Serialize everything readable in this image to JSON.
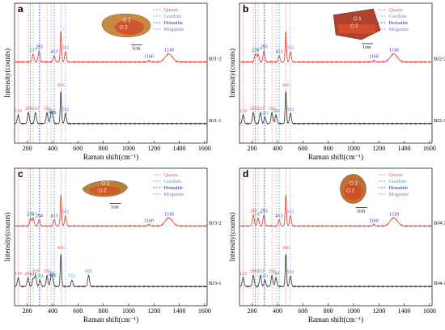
{
  "colors": {
    "quartz": "#e06060",
    "goethite": "#40b0a0",
    "hematite": "#3030b0",
    "moganite": "#9070d0",
    "upper_trace": "#e04030",
    "lower_trace": "#303030"
  },
  "legend_entries": [
    "Quartz",
    "Goethite",
    "Hematite",
    "Moganite"
  ],
  "scale_bar_label": "1cm",
  "chart_data": [
    {
      "type": "line",
      "panel": "a",
      "xlabel": "Raman shift(cm⁻¹)",
      "ylabel": "Intensity(counts)",
      "xlim": [
        100,
        1620
      ],
      "x_ticks": [
        "200",
        "400",
        "600",
        "800",
        "1000",
        "1200",
        "1400",
        "1600"
      ],
      "reference_lines": {
        "quartz": [
          129,
          209,
          356,
          466
        ],
        "goethite": [
          247,
          301,
          388
        ],
        "hematite": [
          226,
          293,
          413
        ],
        "moganite": [
          502
        ]
      },
      "spots": [
        "1",
        "2"
      ],
      "series": [
        {
          "name": "BJ1-2",
          "peaks": [
            {
              "x": 247,
              "label": "247",
              "mineral": "goethite"
            },
            {
              "x": 293,
              "label": "293",
              "mineral": "hematite"
            },
            {
              "x": 413,
              "label": "413",
              "mineral": "hematite"
            },
            {
              "x": 502,
              "label": "502",
              "mineral": "moganite"
            },
            {
              "x": 1160,
              "label": "1160",
              "mineral": "hematite"
            },
            {
              "x": 1318,
              "label": "1318",
              "mineral": "hematite"
            }
          ]
        },
        {
          "name": "BJ1-1",
          "peaks": [
            {
              "x": 129,
              "label": "129",
              "mineral": "quartz"
            },
            {
              "x": 209,
              "label": "209",
              "mineral": "quartz"
            },
            {
              "x": 265,
              "label": "265",
              "mineral": "quartz"
            },
            {
              "x": 356,
              "label": "356",
              "mineral": "quartz"
            },
            {
              "x": 388,
              "label": "388",
              "mineral": "goethite"
            },
            {
              "x": 400,
              "label": "400",
              "mineral": "hematite"
            },
            {
              "x": 466,
              "label": "466",
              "mineral": "quartz"
            },
            {
              "x": 502,
              "label": "502",
              "mineral": "moganite"
            }
          ]
        }
      ]
    },
    {
      "type": "line",
      "panel": "b",
      "xlabel": "Raman shift(cm⁻¹)",
      "ylabel": "Intensity(counts)",
      "xlim": [
        100,
        1620
      ],
      "x_ticks": [
        "200",
        "400",
        "600",
        "800",
        "1000",
        "1200",
        "1400",
        "1600"
      ],
      "reference_lines": {
        "quartz": [
          129,
          209,
          356,
          466
        ],
        "goethite": [
          247,
          301,
          388
        ],
        "hematite": [
          226,
          293,
          413
        ],
        "moganite": [
          502
        ]
      },
      "spots": [
        "1",
        "2"
      ],
      "series": [
        {
          "name": "BJ2-2",
          "peaks": [
            {
              "x": 226,
              "label": "226",
              "mineral": "hematite"
            },
            {
              "x": 247,
              "label": "247",
              "mineral": "goethite"
            },
            {
              "x": 293,
              "label": "293",
              "mineral": "hematite"
            },
            {
              "x": 413,
              "label": "413",
              "mineral": "hematite"
            },
            {
              "x": 502,
              "label": "502",
              "mineral": "moganite"
            },
            {
              "x": 1160,
              "label": "1160",
              "mineral": "hematite"
            },
            {
              "x": 1318,
              "label": "1318",
              "mineral": "hematite"
            }
          ]
        },
        {
          "name": "BJ2-1",
          "peaks": [
            {
              "x": 129,
              "label": "129",
              "mineral": "quartz"
            },
            {
              "x": 209,
              "label": "209",
              "mineral": "quartz"
            },
            {
              "x": 265,
              "label": "265",
              "mineral": "quartz"
            },
            {
              "x": 301,
              "label": "301",
              "mineral": "goethite"
            },
            {
              "x": 356,
              "label": "356",
              "mineral": "quartz"
            },
            {
              "x": 388,
              "label": "388",
              "mineral": "goethite"
            },
            {
              "x": 466,
              "label": "466",
              "mineral": "quartz"
            },
            {
              "x": 502,
              "label": "502",
              "mineral": "moganite"
            }
          ]
        }
      ]
    },
    {
      "type": "line",
      "panel": "c",
      "xlabel": "Raman shift(cm⁻¹)",
      "ylabel": "Intensity(counts)",
      "xlim": [
        100,
        1620
      ],
      "x_ticks": [
        "200",
        "400",
        "600",
        "800",
        "1000",
        "1200",
        "1400",
        "1600"
      ],
      "reference_lines": {
        "quartz": [
          129,
          209,
          356,
          466
        ],
        "goethite": [
          247,
          301,
          388
        ],
        "hematite": [
          226,
          293,
          413
        ],
        "moganite": [
          502
        ]
      },
      "spots": [
        "1",
        "2"
      ],
      "series": [
        {
          "name": "BJ3-2",
          "peaks": [
            {
              "x": 226,
              "label": "226",
              "mineral": "hematite"
            },
            {
              "x": 247,
              "label": "247",
              "mineral": "goethite"
            },
            {
              "x": 294,
              "label": "294",
              "mineral": "hematite"
            },
            {
              "x": 413,
              "label": "413",
              "mineral": "hematite"
            },
            {
              "x": 502,
              "label": "502",
              "mineral": "moganite"
            },
            {
              "x": 1160,
              "label": "1160",
              "mineral": "hematite"
            },
            {
              "x": 1318,
              "label": "1318",
              "mineral": "hematite"
            }
          ]
        },
        {
          "name": "BJ3-1",
          "peaks": [
            {
              "x": 129,
              "label": "129",
              "mineral": "quartz"
            },
            {
              "x": 206,
              "label": "206",
              "mineral": "quartz"
            },
            {
              "x": 247,
              "label": "247",
              "mineral": "goethite"
            },
            {
              "x": 265,
              "label": "265",
              "mineral": "quartz"
            },
            {
              "x": 301,
              "label": "301",
              "mineral": "goethite"
            },
            {
              "x": 356,
              "label": "356",
              "mineral": "quartz"
            },
            {
              "x": 388,
              "label": "388",
              "mineral": "goethite"
            },
            {
              "x": 400,
              "label": "400",
              "mineral": "hematite"
            },
            {
              "x": 466,
              "label": "466",
              "mineral": "quartz"
            },
            {
              "x": 553,
              "label": "553",
              "mineral": "goethite"
            },
            {
              "x": 685,
              "label": "685",
              "mineral": "goethite"
            }
          ]
        }
      ]
    },
    {
      "type": "line",
      "panel": "d",
      "xlabel": "Raman shift(cm⁻¹)",
      "ylabel": "Intensity(counts)",
      "xlim": [
        100,
        1620
      ],
      "x_ticks": [
        "200",
        "400",
        "600",
        "800",
        "1000",
        "1200",
        "1400",
        "1600"
      ],
      "reference_lines": {
        "quartz": [
          129,
          209,
          356,
          466
        ],
        "goethite": [
          247,
          301,
          388
        ],
        "hematite": [
          226,
          293,
          413
        ],
        "moganite": [
          502
        ]
      },
      "spots": [
        "1",
        "2"
      ],
      "series": [
        {
          "name": "BJ4-2",
          "peaks": [
            {
              "x": 209,
              "label": "209",
              "mineral": "quartz"
            },
            {
              "x": 247,
              "label": "247",
              "mineral": "goethite"
            },
            {
              "x": 293,
              "label": "293",
              "mineral": "hematite"
            },
            {
              "x": 413,
              "label": "413",
              "mineral": "hematite"
            },
            {
              "x": 502,
              "label": "502",
              "mineral": "moganite"
            },
            {
              "x": 1160,
              "label": "1160",
              "mineral": "hematite"
            },
            {
              "x": 1318,
              "label": "1318",
              "mineral": "hematite"
            }
          ]
        },
        {
          "name": "BJ4-1",
          "peaks": [
            {
              "x": 129,
              "label": "129",
              "mineral": "quartz"
            },
            {
              "x": 209,
              "label": "209",
              "mineral": "quartz"
            },
            {
              "x": 265,
              "label": "265",
              "mineral": "quartz"
            },
            {
              "x": 301,
              "label": "301",
              "mineral": "goethite"
            },
            {
              "x": 356,
              "label": "356",
              "mineral": "quartz"
            },
            {
              "x": 388,
              "label": "388",
              "mineral": "goethite"
            },
            {
              "x": 466,
              "label": "466",
              "mineral": "quartz"
            },
            {
              "x": 502,
              "label": "502",
              "mineral": "moganite"
            }
          ]
        }
      ]
    }
  ]
}
